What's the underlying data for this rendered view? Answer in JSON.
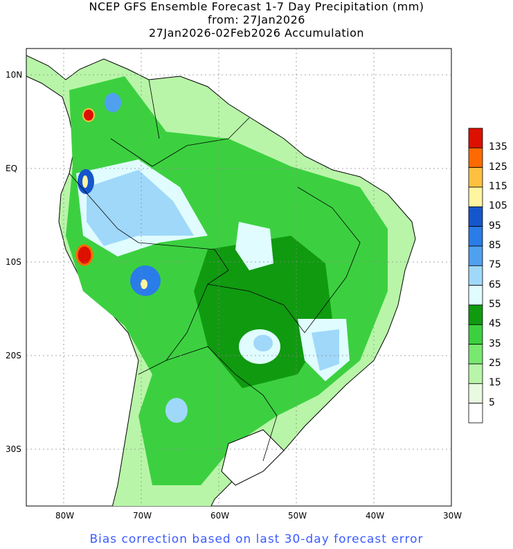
{
  "title": {
    "line1": "NCEP GFS Ensemble Forecast 1-7 Day Precipitation (mm)",
    "line2": "from: 27Jan2026",
    "line3": "27Jan2026-02Feb2026 Accumulation"
  },
  "lat_labels": [
    "10N",
    "EQ",
    "10S",
    "20S",
    "30S"
  ],
  "lon_labels": [
    "80W",
    "70W",
    "60W",
    "50W",
    "40W",
    "30W"
  ],
  "colorbar": {
    "levels": [
      "5",
      "15",
      "25",
      "35",
      "45",
      "55",
      "65",
      "75",
      "85",
      "95",
      "105",
      "115",
      "125",
      "135"
    ],
    "colors": [
      "#ffffff",
      "#e8fbe0",
      "#b8f5a8",
      "#78e870",
      "#3cd040",
      "#109a10",
      "#e0fcff",
      "#a0d8fa",
      "#50a0f0",
      "#2a7ce8",
      "#1656cc",
      "#fff4a0",
      "#ffc040",
      "#ff6a00",
      "#dd1000"
    ]
  },
  "footer": "Bias correction based on last 30-day forecast error"
}
